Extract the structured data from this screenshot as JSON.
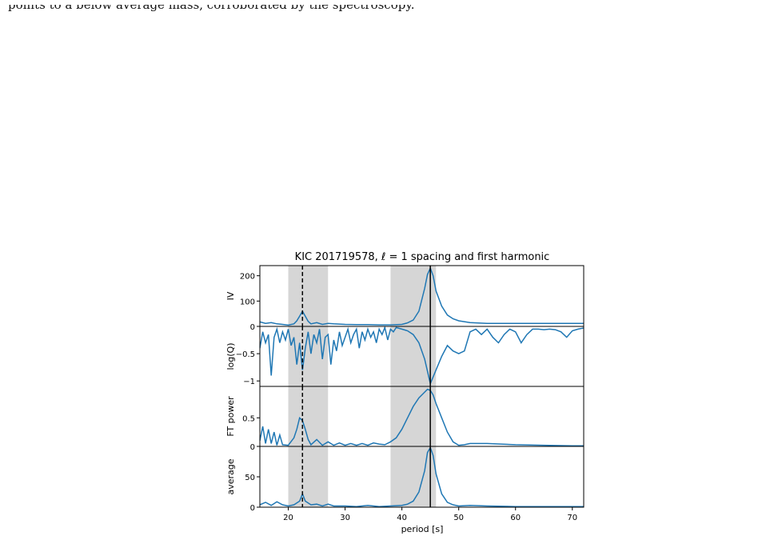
{
  "paper": {
    "body_text_tail": "points to a below average mass, corroborated by the spectroscopy."
  },
  "figure": {
    "title": "KIC 201719578, ℓ = 1 spacing and first harmonic",
    "xlabel": "period [s]",
    "line_color": "#1f77b4",
    "shade_color": "#d6d6d6",
    "vline_solid": 45,
    "vline_dashed": 22.5,
    "shaded_regions": [
      [
        20,
        27
      ],
      [
        38,
        46
      ]
    ]
  },
  "chart_data": [
    {
      "type": "line",
      "panel": "IV",
      "ylabel": "IV",
      "ylim": [
        0,
        240
      ],
      "yticks": [
        100,
        200
      ],
      "xlim": [
        15,
        72
      ],
      "xticks": [
        20,
        30,
        40,
        50,
        60,
        70
      ],
      "series": [
        {
          "x": [
            15,
            16,
            17,
            18,
            19,
            20,
            21,
            21.5,
            22,
            22.5,
            23,
            23.5,
            24,
            25,
            26,
            27,
            28,
            30,
            32,
            34,
            36,
            38,
            40,
            41,
            42,
            43,
            44,
            44.5,
            45,
            45.5,
            46,
            47,
            48,
            49,
            50,
            52,
            55,
            60,
            65,
            70,
            72
          ],
          "y": [
            18,
            12,
            15,
            10,
            8,
            5,
            10,
            22,
            40,
            60,
            40,
            20,
            10,
            15,
            8,
            12,
            10,
            8,
            7,
            7,
            6,
            6,
            8,
            14,
            25,
            60,
            150,
            205,
            230,
            200,
            140,
            80,
            45,
            30,
            22,
            15,
            12,
            12,
            12,
            12,
            12
          ]
        }
      ]
    },
    {
      "type": "line",
      "panel": "log(Q)",
      "ylabel": "log(Q)",
      "ylim": [
        -1.1,
        0
      ],
      "yticks": [
        -1.0,
        -0.5,
        0.0
      ],
      "xlim": [
        15,
        72
      ],
      "series": [
        {
          "x": [
            15,
            15.5,
            16,
            16.5,
            17,
            17.5,
            18,
            18.5,
            19,
            19.5,
            20,
            20.5,
            21,
            21.5,
            22,
            22.5,
            23,
            23.5,
            24,
            24.5,
            25,
            25.5,
            26,
            26.5,
            27,
            27.5,
            28,
            28.5,
            29,
            29.5,
            30,
            30.5,
            31,
            31.5,
            32,
            32.5,
            33,
            33.5,
            34,
            34.5,
            35,
            35.5,
            36,
            36.5,
            37,
            37.5,
            38,
            38.5,
            39,
            40,
            41,
            42,
            43,
            44,
            45,
            46,
            47,
            48,
            49,
            50,
            51,
            52,
            53,
            54,
            55,
            56,
            57,
            58,
            59,
            60,
            61,
            62,
            63,
            64,
            65,
            66,
            67,
            68,
            69,
            70,
            71,
            72
          ],
          "y": [
            -0.4,
            -0.1,
            -0.3,
            -0.15,
            -0.9,
            -0.2,
            -0.05,
            -0.3,
            -0.1,
            -0.25,
            -0.05,
            -0.35,
            -0.2,
            -0.7,
            -0.3,
            -0.8,
            -0.4,
            -0.1,
            -0.5,
            -0.15,
            -0.3,
            -0.05,
            -0.6,
            -0.2,
            -0.15,
            -0.7,
            -0.25,
            -0.45,
            -0.1,
            -0.35,
            -0.2,
            -0.05,
            -0.3,
            -0.15,
            -0.05,
            -0.4,
            -0.1,
            -0.25,
            -0.05,
            -0.2,
            -0.1,
            -0.3,
            -0.05,
            -0.15,
            -0.02,
            -0.25,
            -0.05,
            -0.1,
            -0.02,
            -0.05,
            -0.08,
            -0.15,
            -0.3,
            -0.6,
            -1.05,
            -0.8,
            -0.55,
            -0.35,
            -0.45,
            -0.5,
            -0.45,
            -0.1,
            -0.05,
            -0.15,
            -0.05,
            -0.2,
            -0.3,
            -0.15,
            -0.05,
            -0.1,
            -0.3,
            -0.15,
            -0.05,
            -0.05,
            -0.06,
            -0.05,
            -0.06,
            -0.1,
            -0.2,
            -0.08,
            -0.05,
            -0.03
          ]
        }
      ]
    },
    {
      "type": "line",
      "panel": "FT power",
      "ylabel": "FT power",
      "ylim": [
        0,
        1.05
      ],
      "yticks": [
        0.0,
        0.5
      ],
      "xlim": [
        15,
        72
      ],
      "series": [
        {
          "x": [
            15,
            15.5,
            16,
            16.5,
            17,
            17.5,
            18,
            18.5,
            19,
            20,
            21,
            21.5,
            22,
            22.5,
            23,
            23.5,
            24,
            25,
            26,
            27,
            28,
            29,
            30,
            31,
            32,
            33,
            34,
            35,
            36,
            37,
            38,
            39,
            40,
            41,
            42,
            43,
            44,
            44.5,
            45,
            45.5,
            46,
            47,
            48,
            49,
            50,
            51,
            52,
            55,
            60,
            65,
            70,
            72
          ],
          "y": [
            0.1,
            0.35,
            0.05,
            0.3,
            0.05,
            0.25,
            0.02,
            0.2,
            0.03,
            0.02,
            0.15,
            0.3,
            0.5,
            0.45,
            0.3,
            0.12,
            0.03,
            0.12,
            0.02,
            0.08,
            0.02,
            0.06,
            0.02,
            0.05,
            0.02,
            0.05,
            0.02,
            0.06,
            0.04,
            0.03,
            0.08,
            0.15,
            0.3,
            0.5,
            0.7,
            0.85,
            0.95,
            1.0,
            0.98,
            0.9,
            0.75,
            0.5,
            0.25,
            0.08,
            0.02,
            0.03,
            0.05,
            0.05,
            0.03,
            0.02,
            0.01,
            0.01
          ]
        }
      ]
    },
    {
      "type": "line",
      "panel": "average",
      "ylabel": "average",
      "ylim": [
        0,
        100
      ],
      "yticks": [
        0,
        50
      ],
      "xlim": [
        15,
        72
      ],
      "xticks": [
        20,
        30,
        40,
        50,
        60,
        70
      ],
      "series": [
        {
          "x": [
            15,
            16,
            17,
            18,
            19,
            20,
            21,
            22,
            22.5,
            23,
            24,
            25,
            26,
            27,
            28,
            30,
            32,
            34,
            36,
            38,
            40,
            41,
            42,
            43,
            44,
            44.5,
            45,
            45.5,
            46,
            47,
            48,
            49,
            50,
            52,
            55,
            60,
            65,
            70,
            72
          ],
          "y": [
            4,
            8,
            3,
            9,
            4,
            2,
            4,
            10,
            22,
            10,
            4,
            5,
            2,
            5,
            2,
            2,
            1,
            3,
            1,
            2,
            3,
            5,
            10,
            25,
            60,
            90,
            98,
            85,
            55,
            22,
            8,
            4,
            2,
            3,
            2,
            1,
            1,
            1,
            1
          ]
        }
      ]
    }
  ]
}
